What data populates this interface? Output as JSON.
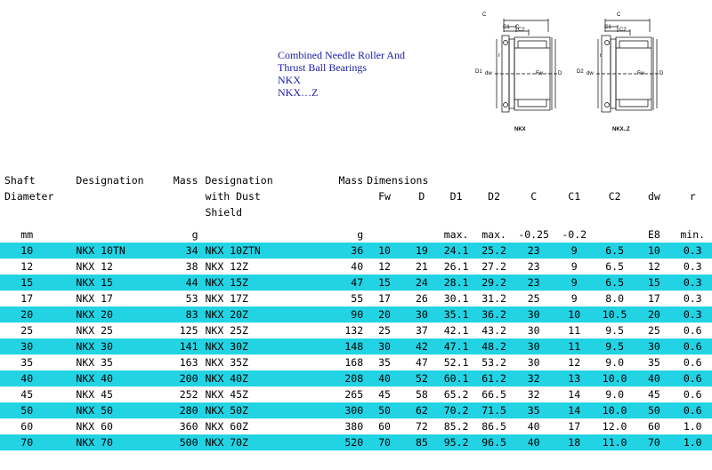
{
  "title_lines": [
    "Combined Needle Roller And",
    "Thrust Ball Bearings",
    "NKX",
    "NKX…Z"
  ],
  "diagrams": [
    {
      "caption": "NKX",
      "labels": {
        "c": "C",
        "c1": "C1",
        "c2": "C2",
        "r": "r",
        "d1": "D1",
        "dw": "dw",
        "fw": "Fw",
        "d": "D"
      }
    },
    {
      "caption": "NKX..Z",
      "labels": {
        "c": "C",
        "c1": "C1",
        "c2": "C2",
        "r": "r",
        "d2": "D2",
        "dw": "dw",
        "fw": "Fw",
        "d": "D"
      }
    }
  ],
  "table": {
    "headers": {
      "shaft": [
        "Shaft",
        "Diameter"
      ],
      "designation": "Designation",
      "mass": "Mass",
      "designation_dust": [
        "Designation",
        "with Dust",
        "Shield"
      ],
      "mass2": "Mass",
      "dimensions": "Dimensions",
      "dims": [
        "Fw",
        "D",
        "D1",
        "D2",
        "C",
        "C1",
        "C2",
        "dw",
        "r"
      ]
    },
    "units": {
      "shaft": "mm",
      "mass": "g",
      "mass2": "g",
      "d1": "max.",
      "d2": "max.",
      "c": "-0.25",
      "c1": "-0.2",
      "dw": "E8",
      "r": "min."
    },
    "rows": [
      [
        "10",
        "NKX 10TN",
        "34",
        "NKX 10ZTN",
        "36",
        "10",
        "19",
        "24.1",
        "25.2",
        "23",
        "9",
        "6.5",
        "10",
        "0.3"
      ],
      [
        "12",
        "NKX 12",
        "38",
        "NKX 12Z",
        "40",
        "12",
        "21",
        "26.1",
        "27.2",
        "23",
        "9",
        "6.5",
        "12",
        "0.3"
      ],
      [
        "15",
        "NKX 15",
        "44",
        "NKX 15Z",
        "47",
        "15",
        "24",
        "28.1",
        "29.2",
        "23",
        "9",
        "6.5",
        "15",
        "0.3"
      ],
      [
        "17",
        "NKX 17",
        "53",
        "NKX 17Z",
        "55",
        "17",
        "26",
        "30.1",
        "31.2",
        "25",
        "9",
        "8.0",
        "17",
        "0.3"
      ],
      [
        "20",
        "NKX 20",
        "83",
        "NKX 20Z",
        "90",
        "20",
        "30",
        "35.1",
        "36.2",
        "30",
        "10",
        "10.5",
        "20",
        "0.3"
      ],
      [
        "25",
        "NKX 25",
        "125",
        "NKX 25Z",
        "132",
        "25",
        "37",
        "42.1",
        "43.2",
        "30",
        "11",
        "9.5",
        "25",
        "0.6"
      ],
      [
        "30",
        "NKX 30",
        "141",
        "NKX 30Z",
        "148",
        "30",
        "42",
        "47.1",
        "48.2",
        "30",
        "11",
        "9.5",
        "30",
        "0.6"
      ],
      [
        "35",
        "NKX 35",
        "163",
        "NKX 35Z",
        "168",
        "35",
        "47",
        "52.1",
        "53.2",
        "30",
        "12",
        "9.0",
        "35",
        "0.6"
      ],
      [
        "40",
        "NKX 40",
        "200",
        "NKX 40Z",
        "208",
        "40",
        "52",
        "60.1",
        "61.2",
        "32",
        "13",
        "10.0",
        "40",
        "0.6"
      ],
      [
        "45",
        "NKX 45",
        "252",
        "NKX 45Z",
        "265",
        "45",
        "58",
        "65.2",
        "66.5",
        "32",
        "14",
        "9.0",
        "45",
        "0.6"
      ],
      [
        "50",
        "NKX 50",
        "280",
        "NKX 50Z",
        "300",
        "50",
        "62",
        "70.2",
        "71.5",
        "35",
        "14",
        "10.0",
        "50",
        "0.6"
      ],
      [
        "60",
        "NKX 60",
        "360",
        "NKX 60Z",
        "380",
        "60",
        "72",
        "85.2",
        "86.5",
        "40",
        "17",
        "12.0",
        "60",
        "1.0"
      ],
      [
        "70",
        "NKX 70",
        "500",
        "NKX 70Z",
        "520",
        "70",
        "85",
        "95.2",
        "96.5",
        "40",
        "18",
        "11.0",
        "70",
        "1.0"
      ]
    ]
  }
}
